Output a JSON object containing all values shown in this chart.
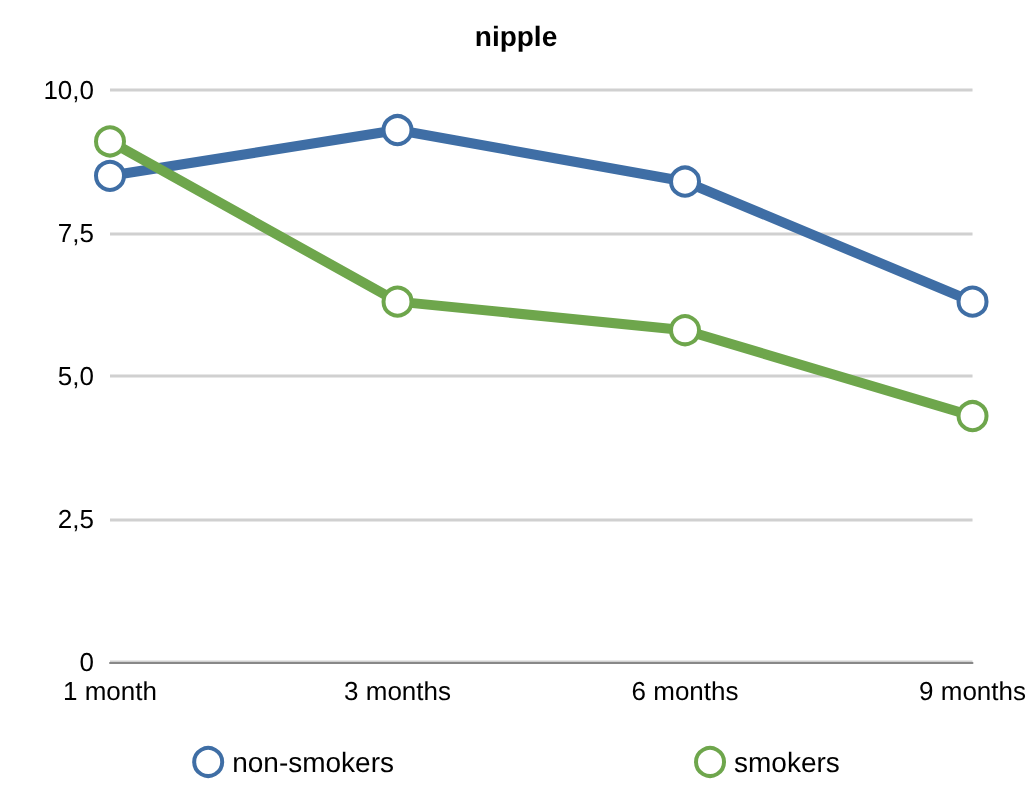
{
  "chart_data": {
    "type": "line",
    "title": "nipple",
    "categories": [
      "1 month",
      "3 months",
      "6 months",
      "9 months"
    ],
    "series": [
      {
        "name": "non-smokers",
        "color": "#3f6ea5",
        "values": [
          8.5,
          9.3,
          8.4,
          6.3
        ]
      },
      {
        "name": "smokers",
        "color": "#6ea64c",
        "values": [
          9.1,
          6.3,
          5.8,
          4.3
        ]
      }
    ],
    "ylim": [
      0,
      10
    ],
    "yticks": [
      {
        "value": 0,
        "label": "0"
      },
      {
        "value": 2.5,
        "label": "2,5"
      },
      {
        "value": 5,
        "label": "5,0"
      },
      {
        "value": 7.5,
        "label": "7,5"
      },
      {
        "value": 10,
        "label": "10,0"
      }
    ],
    "grid": "y",
    "legend": "bottom",
    "marker": "circle",
    "line_style": "solid"
  }
}
